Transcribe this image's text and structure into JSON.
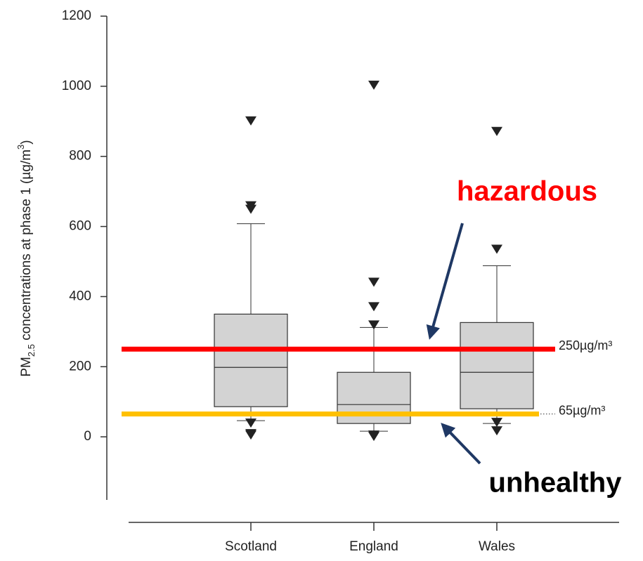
{
  "chart_data": {
    "type": "box",
    "ylabel": [
      "PM",
      "2.5",
      " concentrations at phase 1 (µg/m",
      "3",
      ")"
    ],
    "categories": [
      "Scotland",
      "England",
      "Wales"
    ],
    "boxes": [
      {
        "whisker_low": 46,
        "q1": 86,
        "median": 198,
        "q3": 350,
        "whisker_high": 608,
        "outliers": [
          902,
          660,
          650,
          40,
          10,
          6
        ]
      },
      {
        "whisker_low": 16,
        "q1": 38,
        "median": 92,
        "q3": 184,
        "whisker_high": 312,
        "outliers": [
          1004,
          442,
          372,
          320,
          6,
          2
        ]
      },
      {
        "whisker_low": 38,
        "q1": 80,
        "median": 184,
        "q3": 326,
        "whisker_high": 488,
        "outliers": [
          872,
          536,
          42,
          18
        ]
      }
    ],
    "box_color": "#d3d3d3",
    "ylim": [
      -180,
      1200
    ],
    "yticks": [
      0,
      200,
      400,
      600,
      800,
      1000,
      1200
    ],
    "thresholds": [
      {
        "value": 250,
        "label": "250µg/m³",
        "color": "#ff0000"
      },
      {
        "value": 65,
        "label": "65µg/m³",
        "color": "#ffc000"
      }
    ],
    "annotations": [
      {
        "text": "hazardous",
        "color": "#ff0000"
      },
      {
        "text": "unhealthy",
        "color": "#000000"
      }
    ]
  }
}
